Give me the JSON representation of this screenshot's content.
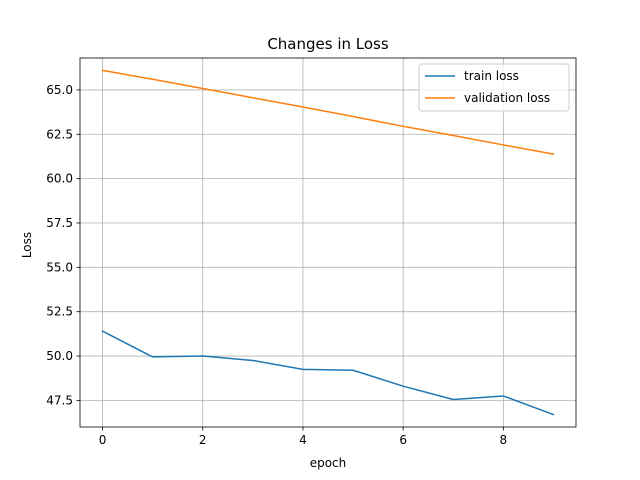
{
  "chart_data": {
    "type": "line",
    "title": "Changes in Loss",
    "xlabel": "epoch",
    "ylabel": "Loss",
    "x": [
      0,
      1,
      2,
      3,
      4,
      5,
      6,
      7,
      8,
      9
    ],
    "series": [
      {
        "name": "train loss",
        "color": "#1f77b4",
        "values": [
          51.4,
          49.95,
          50.0,
          49.75,
          49.25,
          49.2,
          48.3,
          47.55,
          47.75,
          46.7
        ]
      },
      {
        "name": "validation loss",
        "color": "#ff7f0e",
        "values": [
          66.1,
          65.6,
          65.08,
          64.56,
          64.04,
          63.5,
          62.95,
          62.43,
          61.9,
          61.38
        ]
      }
    ],
    "xlim": [
      -0.45,
      9.45
    ],
    "ylim": [
      46.0,
      66.8
    ],
    "xticks": [
      0,
      2,
      4,
      6,
      8
    ],
    "xtick_labels": [
      "0",
      "2",
      "4",
      "6",
      "8"
    ],
    "yticks": [
      47.5,
      50.0,
      52.5,
      55.0,
      57.5,
      60.0,
      62.5,
      65.0
    ],
    "ytick_labels": [
      "47.5",
      "50.0",
      "52.5",
      "55.0",
      "57.5",
      "60.0",
      "62.5",
      "65.0"
    ],
    "grid": true,
    "legend_position": "top-right"
  }
}
